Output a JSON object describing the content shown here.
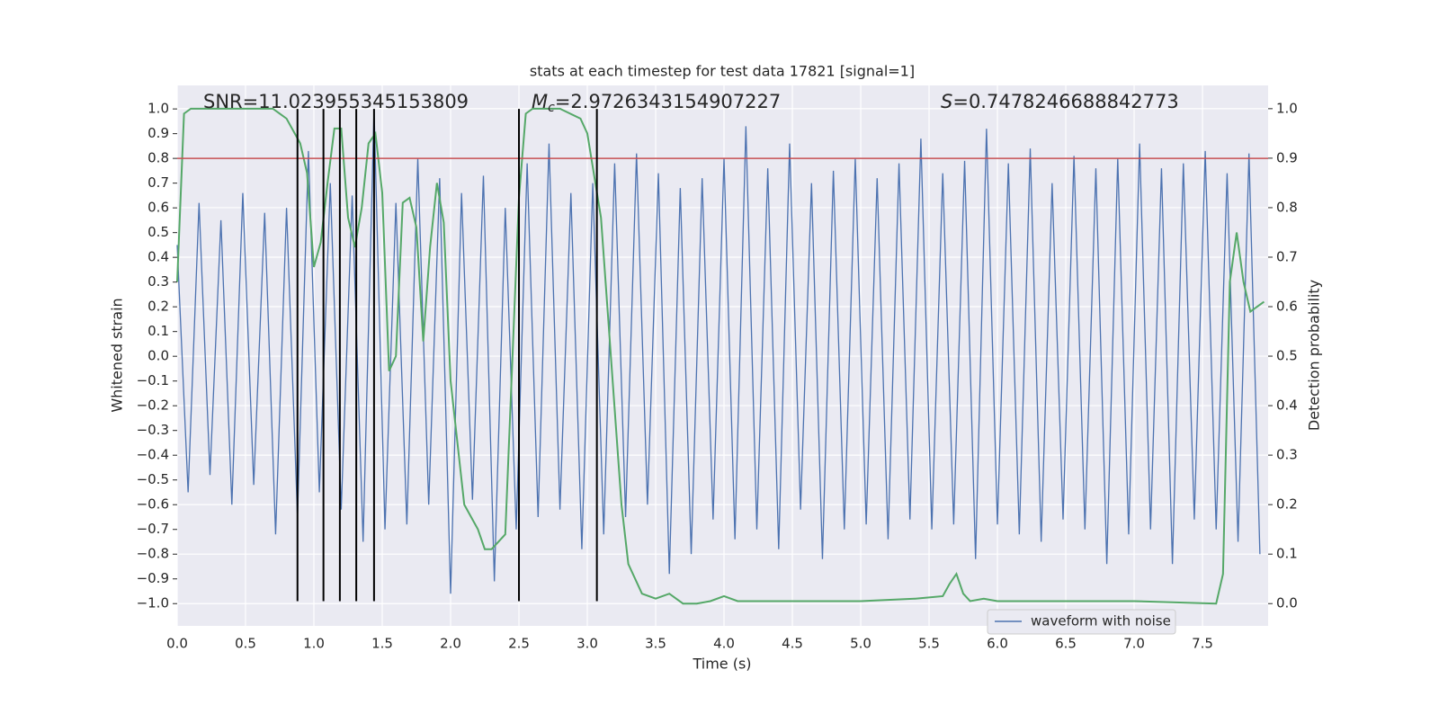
{
  "chart_data": {
    "type": "line",
    "title": "stats at each timestep for test data 17821 [signal=1]",
    "x_label": "Time (s)",
    "y_label": "Whitened strain",
    "y2_label": "Detection probability",
    "annotations": [
      {
        "text": "SNR=11.023955345153809"
      },
      {
        "symbol": "M",
        "subscript": "c",
        "text": "=2.9726343154907227"
      },
      {
        "symbol": "S",
        "text": "=0.7478246688842773"
      }
    ],
    "xlim": [
      0,
      7.98
    ],
    "ylim": [
      -1.09,
      1.095
    ],
    "y2lim": [
      -0.045,
      1.047
    ],
    "grid": true,
    "xticks": [
      {
        "value": 0,
        "label": "0.0"
      },
      {
        "value": 0.5,
        "label": "0.5"
      },
      {
        "value": 1,
        "label": "1.0"
      },
      {
        "value": 1.5,
        "label": "1.5"
      },
      {
        "value": 2,
        "label": "2.0"
      },
      {
        "value": 2.5,
        "label": "2.5"
      },
      {
        "value": 3,
        "label": "3.0"
      },
      {
        "value": 3.5,
        "label": "3.5"
      },
      {
        "value": 4,
        "label": "4.0"
      },
      {
        "value": 4.5,
        "label": "4.5"
      },
      {
        "value": 5,
        "label": "5.0"
      },
      {
        "value": 5.5,
        "label": "5.5"
      },
      {
        "value": 6,
        "label": "6.0"
      },
      {
        "value": 6.5,
        "label": "6.5"
      },
      {
        "value": 7,
        "label": "7.0"
      },
      {
        "value": 7.5,
        "label": "7.5"
      }
    ],
    "yticks": [
      {
        "value": 1,
        "label": "1.0"
      },
      {
        "value": 0.9,
        "label": "0.9"
      },
      {
        "value": 0.8,
        "label": "0.8"
      },
      {
        "value": 0.7,
        "label": "0.7"
      },
      {
        "value": 0.6,
        "label": "0.6"
      },
      {
        "value": 0.5,
        "label": "0.5"
      },
      {
        "value": 0.4,
        "label": "0.4"
      },
      {
        "value": 0.3,
        "label": "0.3"
      },
      {
        "value": 0.2,
        "label": "0.2"
      },
      {
        "value": 0.1,
        "label": "0.1"
      },
      {
        "value": 0,
        "label": "0.0"
      },
      {
        "value": -0.1,
        "label": "−0.1"
      },
      {
        "value": -0.2,
        "label": "−0.2"
      },
      {
        "value": -0.3,
        "label": "−0.3"
      },
      {
        "value": -0.4,
        "label": "−0.4"
      },
      {
        "value": -0.5,
        "label": "−0.5"
      },
      {
        "value": -0.6,
        "label": "−0.6"
      },
      {
        "value": -0.7,
        "label": "−0.7"
      },
      {
        "value": -0.8,
        "label": "−0.8"
      },
      {
        "value": -0.9,
        "label": "−0.9"
      },
      {
        "value": -1,
        "label": "−1.0"
      }
    ],
    "y2ticks": [
      {
        "value": 1,
        "label": "1.0"
      },
      {
        "value": 0.9,
        "label": "0.9"
      },
      {
        "value": 0.8,
        "label": "0.8"
      },
      {
        "value": 0.7,
        "label": "0.7"
      },
      {
        "value": 0.6,
        "label": "0.6"
      },
      {
        "value": 0.5,
        "label": "0.5"
      },
      {
        "value": 0.4,
        "label": "0.4"
      },
      {
        "value": 0.3,
        "label": "0.3"
      },
      {
        "value": 0.2,
        "label": "0.2"
      },
      {
        "value": 0.1,
        "label": "0.1"
      },
      {
        "value": 0,
        "label": "0.0"
      }
    ],
    "hline": {
      "value": 0.8,
      "color": "#c44e52"
    },
    "vlines": {
      "x": [
        0.88,
        1.07,
        1.19,
        1.31,
        1.44,
        2.5,
        3.07
      ],
      "ymin": -0.99,
      "ymax": 1.0,
      "color": "#000000"
    },
    "legend": "lower right",
    "series": [
      {
        "name": "waveform with noise",
        "color": "#4c72b0",
        "x": [
          0,
          0.08,
          0.16,
          0.24,
          0.32,
          0.4,
          0.48,
          0.56,
          0.64,
          0.72,
          0.8,
          0.88,
          0.96,
          1.04,
          1.12,
          1.2,
          1.28,
          1.36,
          1.44,
          1.52,
          1.6,
          1.68,
          1.76,
          1.84,
          1.92,
          2,
          2.08,
          2.16,
          2.24,
          2.32,
          2.4,
          2.48,
          2.56,
          2.64,
          2.72,
          2.8,
          2.88,
          2.96,
          3.04,
          3.12,
          3.2,
          3.28,
          3.36,
          3.44,
          3.52,
          3.6,
          3.68,
          3.76,
          3.84,
          3.92,
          4,
          4.08,
          4.16,
          4.24,
          4.32,
          4.4,
          4.48,
          4.56,
          4.64,
          4.72,
          4.8,
          4.88,
          4.96,
          5.04,
          5.12,
          5.2,
          5.28,
          5.36,
          5.44,
          5.52,
          5.6,
          5.68,
          5.76,
          5.84,
          5.92,
          6,
          6.08,
          6.16,
          6.24,
          6.32,
          6.4,
          6.48,
          6.56,
          6.64,
          6.72,
          6.8,
          6.88,
          6.96,
          7.04,
          7.12,
          7.2,
          7.28,
          7.36,
          7.44,
          7.52,
          7.6,
          7.68,
          7.76,
          7.84,
          7.92
        ],
        "values": [
          0.45,
          -0.55,
          0.62,
          -0.48,
          0.55,
          -0.6,
          0.66,
          -0.52,
          0.58,
          -0.72,
          0.6,
          -0.65,
          0.83,
          -0.55,
          0.7,
          -0.62,
          0.65,
          -0.75,
          1.0,
          -0.7,
          0.62,
          -0.68,
          0.8,
          -0.6,
          0.72,
          -0.96,
          0.66,
          -0.58,
          0.73,
          -0.91,
          0.6,
          -0.7,
          0.78,
          -0.65,
          0.86,
          -0.62,
          0.66,
          -0.78,
          0.7,
          -0.72,
          0.78,
          -0.65,
          0.82,
          -0.6,
          0.74,
          -0.88,
          0.68,
          -0.8,
          0.72,
          -0.66,
          0.8,
          -0.74,
          0.93,
          -0.7,
          0.76,
          -0.78,
          0.86,
          -0.62,
          0.7,
          -0.82,
          0.75,
          -0.7,
          0.8,
          -0.68,
          0.72,
          -0.74,
          0.78,
          -0.66,
          0.88,
          -0.7,
          0.74,
          -0.68,
          0.79,
          -0.82,
          0.92,
          -0.68,
          0.78,
          -0.72,
          0.84,
          -0.75,
          0.7,
          -0.66,
          0.81,
          -0.7,
          0.76,
          -0.84,
          0.8,
          -0.72,
          0.86,
          -0.7,
          0.76,
          -0.84,
          0.78,
          -0.66,
          0.83,
          -0.7,
          0.74,
          -0.75,
          0.82,
          -0.8
        ]
      },
      {
        "color": "#55a868",
        "axis": "y2",
        "x": [
          0,
          0.05,
          0.1,
          0.2,
          0.4,
          0.7,
          0.8,
          0.9,
          0.95,
          1.0,
          1.05,
          1.1,
          1.15,
          1.2,
          1.25,
          1.3,
          1.35,
          1.4,
          1.45,
          1.5,
          1.55,
          1.6,
          1.65,
          1.7,
          1.75,
          1.8,
          1.85,
          1.9,
          1.95,
          2.0,
          2.1,
          2.2,
          2.25,
          2.3,
          2.4,
          2.5,
          2.55,
          2.6,
          2.8,
          2.95,
          3.0,
          3.1,
          3.25,
          3.3,
          3.4,
          3.5,
          3.6,
          3.7,
          3.8,
          3.9,
          4.0,
          4.1,
          4.5,
          5.0,
          5.4,
          5.6,
          5.65,
          5.7,
          5.75,
          5.8,
          5.9,
          6.0,
          6.5,
          7.0,
          7.6,
          7.65,
          7.7,
          7.75,
          7.8,
          7.85,
          7.95
        ],
        "values": [
          0.65,
          0.99,
          1.0,
          1.0,
          1.0,
          1.0,
          0.98,
          0.93,
          0.87,
          0.68,
          0.73,
          0.85,
          0.96,
          0.96,
          0.78,
          0.72,
          0.8,
          0.93,
          0.95,
          0.83,
          0.47,
          0.5,
          0.81,
          0.82,
          0.76,
          0.53,
          0.72,
          0.85,
          0.77,
          0.45,
          0.2,
          0.15,
          0.11,
          0.11,
          0.14,
          0.82,
          0.99,
          1.0,
          1.0,
          0.98,
          0.95,
          0.78,
          0.2,
          0.08,
          0.02,
          0.01,
          0.02,
          0.0,
          0.0,
          0.005,
          0.015,
          0.005,
          0.005,
          0.005,
          0.01,
          0.015,
          0.04,
          0.06,
          0.02,
          0.005,
          0.01,
          0.005,
          0.005,
          0.005,
          0.0,
          0.06,
          0.65,
          0.75,
          0.65,
          0.59,
          0.61
        ]
      }
    ]
  }
}
